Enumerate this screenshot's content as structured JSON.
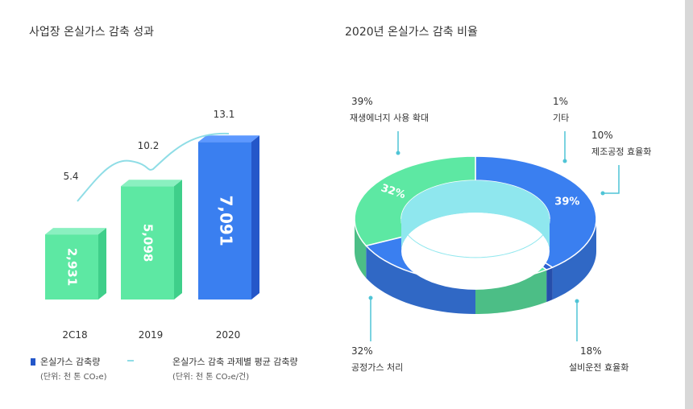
{
  "chart_data": [
    {
      "type": "bar",
      "title": "사업장 온실가스 감축 성과",
      "categories": [
        "2C18",
        "2019",
        "2020"
      ],
      "series": [
        {
          "name": "온실가스 감축량",
          "unit": "(단위: 천 톤 CO₂e)",
          "values": [
            2931,
            5098,
            7091
          ],
          "labels": [
            "2,931",
            "5,098",
            "7,091"
          ]
        },
        {
          "name": "온실가스 감축 과제별 평균 감축량",
          "unit": "(단위: 천 톤 CO₂e/건)",
          "values": [
            5.4,
            10.2,
            13.1
          ],
          "labels": [
            "5.4",
            "10.2",
            "13.1"
          ]
        }
      ],
      "colors": {
        "green": "#5de8a3",
        "green_side": "#3fcf8a",
        "blue": "#3a7ff0",
        "blue_side": "#2457c9",
        "line": "#8fdde6"
      }
    },
    {
      "type": "pie",
      "donut": true,
      "title": "2020년 온실가스 감축 비율",
      "slices": [
        {
          "name": "재생에너지 사용 확대",
          "value": 39,
          "pct": "39%",
          "inner": "39%",
          "color": "#3a7ff0"
        },
        {
          "name": "기타",
          "value": 1,
          "pct": "1%",
          "inner": "1%",
          "color": "#2e5fd0"
        },
        {
          "name": "제조공정 효율화",
          "value": 10,
          "pct": "10%",
          "inner": "10%",
          "color": "#5de8a3"
        },
        {
          "name": "설비운전 효율화",
          "value": 18,
          "pct": "18%",
          "inner": "18%",
          "color": "#3a7ff0"
        },
        {
          "name": "공정가스 처리",
          "value": 32,
          "pct": "32%",
          "inner": "32%",
          "color": "#5de8a3"
        }
      ],
      "colors": {
        "inner_wall": "#8fe7ee",
        "leader": "#4fc4d6"
      }
    }
  ]
}
